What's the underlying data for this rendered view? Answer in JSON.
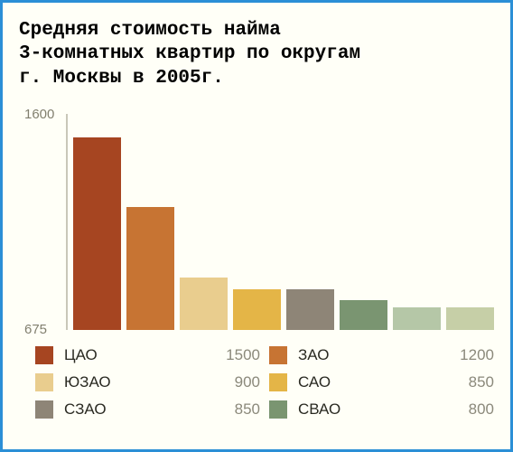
{
  "title_lines": [
    "Средняя стоимость найма",
    "3-комнатных квартир по округам",
    "г. Москвы в 2005г."
  ],
  "chart": {
    "type": "bar",
    "ylim": [
      675,
      1600
    ],
    "ytick_labels": [
      "1600",
      "675"
    ],
    "y_axis_color": "#c9c7b9",
    "ylabel_color": "#817f6f",
    "ylabel_fontsize": 15,
    "background_color": "#fffff7",
    "border_color": "#2b8fd6",
    "title_color": "#000000",
    "title_fontsize": 21,
    "bars": [
      {
        "name": "ЦАО",
        "value": 1500,
        "color": "#a64521"
      },
      {
        "name": "ЗАО",
        "value": 1200,
        "color": "#c77433"
      },
      {
        "name": "ЮЗАО",
        "value": 900,
        "color": "#e9cd8e"
      },
      {
        "name": "САО",
        "value": 850,
        "color": "#e4b547"
      },
      {
        "name": "СЗАО",
        "value": 850,
        "color": "#8e8577"
      },
      {
        "name": "СВАО",
        "value": 800,
        "color": "#7a9571"
      },
      {
        "name": "",
        "value": 770,
        "color": "#b5c7a7"
      },
      {
        "name": "",
        "value": 770,
        "color": "#c6cfa7"
      }
    ],
    "legend_name_color": "#2a2a22",
    "legend_value_color": "#8b897b",
    "legend_fontsize": 17
  }
}
